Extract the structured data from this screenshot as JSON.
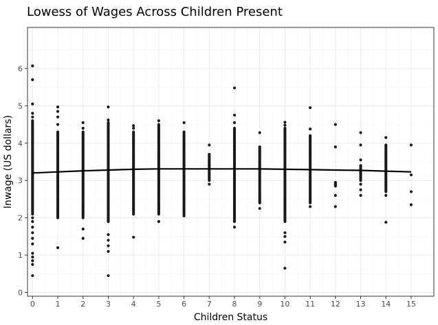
{
  "chart_data": {
    "type": "scatter",
    "title": "Lowess of Wages Across Children Present",
    "xlabel": "Children Status",
    "ylabel": "lnwage (US dollars)",
    "xlim": [
      -0.2,
      15.9
    ],
    "ylim": [
      -0.1,
      7.1
    ],
    "x_ticks": [
      0,
      1,
      2,
      3,
      4,
      5,
      6,
      7,
      8,
      9,
      10,
      11,
      12,
      13,
      14,
      15
    ],
    "y_ticks": [
      0,
      1,
      2,
      3,
      4,
      5,
      6
    ],
    "grid": true,
    "legend": "none",
    "point_color": "#1a1a1a",
    "line_color": "#000000",
    "columns": [
      {
        "x": 0,
        "dense": [
          2.1,
          4.6
        ],
        "extra": [
          0.45,
          0.75,
          0.85,
          0.95,
          1.05,
          1.3,
          1.45,
          1.6,
          1.75,
          1.9,
          2.0,
          4.7,
          4.8,
          5.05,
          5.7,
          6.07
        ]
      },
      {
        "x": 1,
        "dense": [
          2.0,
          4.3
        ],
        "extra": [
          1.2,
          4.5,
          4.7,
          4.85,
          4.97
        ]
      },
      {
        "x": 2,
        "dense": [
          2.0,
          4.3
        ],
        "extra": [
          1.45,
          1.7,
          4.4,
          4.55
        ]
      },
      {
        "x": 3,
        "dense": [
          1.9,
          4.55
        ],
        "extra": [
          0.45,
          1.1,
          1.25,
          1.4,
          1.55,
          4.62,
          4.97
        ]
      },
      {
        "x": 4,
        "dense": [
          2.1,
          4.3
        ],
        "extra": [
          1.48,
          4.4,
          4.47
        ]
      },
      {
        "x": 5,
        "dense": [
          2.1,
          4.5
        ],
        "extra": [
          1.9,
          4.6
        ]
      },
      {
        "x": 6,
        "dense": [
          2.1,
          4.3
        ],
        "extra": [
          2.05,
          4.55
        ]
      },
      {
        "x": 7,
        "dense": [
          3.0,
          3.7
        ],
        "extra": [
          2.9,
          3.95
        ]
      },
      {
        "x": 8,
        "dense": [
          1.9,
          4.4
        ],
        "extra": [
          1.75,
          4.55,
          4.75,
          5.48
        ]
      },
      {
        "x": 9,
        "dense": [
          2.4,
          3.9
        ],
        "extra": [
          2.25,
          4.28
        ]
      },
      {
        "x": 10,
        "dense": [
          1.9,
          4.4
        ],
        "extra": [
          0.65,
          1.35,
          1.5,
          1.6,
          4.48,
          4.56
        ]
      },
      {
        "x": 11,
        "dense": [
          2.4,
          4.2
        ],
        "extra": [
          2.3,
          4.38,
          4.95
        ]
      },
      {
        "x": 12,
        "dense": [
          2.85,
          2.95
        ],
        "extra": [
          2.3,
          2.6,
          3.9,
          4.5
        ]
      },
      {
        "x": 13,
        "dense": [
          3.0,
          3.4
        ],
        "extra": [
          2.6,
          2.75,
          2.9,
          3.55,
          3.95,
          4.28
        ]
      },
      {
        "x": 14,
        "dense": [
          2.7,
          3.95
        ],
        "extra": [
          1.88,
          2.6,
          4.15
        ]
      },
      {
        "x": 15,
        "dense": [],
        "extra": [
          2.35,
          2.7,
          3.15,
          3.95
        ]
      }
    ],
    "lowess_line": {
      "x": [
        0,
        1,
        2,
        3,
        4,
        5,
        6,
        7,
        8,
        9,
        10,
        11,
        12,
        13,
        14,
        15
      ],
      "y": [
        3.2,
        3.23,
        3.26,
        3.28,
        3.3,
        3.31,
        3.31,
        3.31,
        3.31,
        3.31,
        3.3,
        3.29,
        3.28,
        3.27,
        3.25,
        3.23
      ]
    }
  }
}
